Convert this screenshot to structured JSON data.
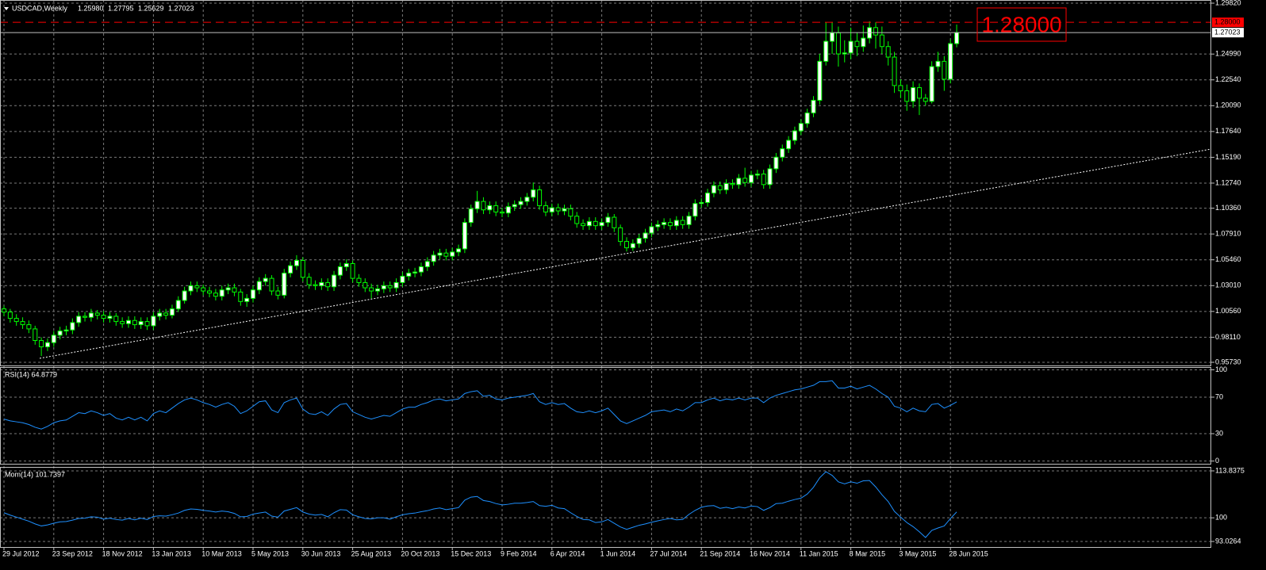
{
  "chart_data": [
    {
      "type": "candlestick",
      "title": "USDCAD,Weekly",
      "ohlc_labels": [
        "1.25980",
        "1.27795",
        "1.25629",
        "1.27023"
      ],
      "wick_color": "#00ff00",
      "up_color": "#ffffff",
      "down_color": "#000000",
      "grid": true,
      "ylim": [
        0.9543,
        1.3012
      ],
      "yticks": [
        {
          "value": 1.2982,
          "label": "1.29820"
        },
        {
          "value": 1.2499,
          "label": "1.24990"
        },
        {
          "value": 1.2254,
          "label": "1.22540"
        },
        {
          "value": 1.2009,
          "label": "1.20090"
        },
        {
          "value": 1.1764,
          "label": "1.17640"
        },
        {
          "value": 1.1519,
          "label": "1.15190"
        },
        {
          "value": 1.1274,
          "label": "1.12740"
        },
        {
          "value": 1.1036,
          "label": "1.10360"
        },
        {
          "value": 1.0791,
          "label": "1.07910"
        },
        {
          "value": 1.0546,
          "label": "1.05460"
        },
        {
          "value": 1.0301,
          "label": "1.03010"
        },
        {
          "value": 1.0056,
          "label": "1.00560"
        },
        {
          "value": 0.9811,
          "label": "0.98110"
        },
        {
          "value": 0.9573,
          "label": "0.95730"
        }
      ],
      "hline": {
        "value": 1.28,
        "label": "1.28000",
        "color": "#ff0000"
      },
      "current": {
        "value": 1.27023,
        "label": "1.27023",
        "color": "#c0c0c0"
      },
      "open": [
        1.008,
        1.005,
        0.999,
        0.996,
        0.993,
        0.989,
        0.978,
        0.972,
        0.976,
        0.983,
        0.987,
        0.988,
        0.995,
        1.001,
        1.0,
        1.004,
        1.002,
        0.999,
        1.001,
        0.996,
        0.994,
        0.997,
        0.993,
        0.996,
        0.992,
        1.001,
        1.004,
        1.002,
        1.008,
        1.016,
        1.025,
        1.03,
        1.028,
        1.025,
        1.023,
        1.02,
        1.026,
        1.028,
        1.024,
        1.015,
        1.018,
        1.026,
        1.034,
        1.037,
        1.025,
        1.021,
        1.042,
        1.049,
        1.054,
        1.038,
        1.031,
        1.03,
        1.033,
        1.029,
        1.04,
        1.048,
        1.051,
        1.037,
        1.033,
        1.028,
        1.025,
        1.027,
        1.03,
        1.028,
        1.033,
        1.039,
        1.042,
        1.043,
        1.048,
        1.053,
        1.059,
        1.061,
        1.058,
        1.062,
        1.065,
        1.09,
        1.103,
        1.11,
        1.102,
        1.106,
        1.1,
        1.099,
        1.105,
        1.107,
        1.11,
        1.114,
        1.121,
        1.106,
        1.1,
        1.104,
        1.101,
        1.103,
        1.096,
        1.089,
        1.087,
        1.091,
        1.087,
        1.09,
        1.095,
        1.085,
        1.072,
        1.066,
        1.07,
        1.075,
        1.08,
        1.086,
        1.088,
        1.09,
        1.087,
        1.092,
        1.088,
        1.096,
        1.108,
        1.109,
        1.118,
        1.125,
        1.121,
        1.127,
        1.126,
        1.132,
        1.128,
        1.135,
        1.136,
        1.126,
        1.141,
        1.152,
        1.16,
        1.168,
        1.177,
        1.184,
        1.194,
        1.206,
        1.243,
        1.262,
        1.27,
        1.25,
        1.251,
        1.262,
        1.257,
        1.265,
        1.275,
        1.268,
        1.257,
        1.247,
        1.22,
        1.215,
        1.205,
        1.218,
        1.208,
        1.205,
        1.238,
        1.243,
        1.226,
        1.2598
      ],
      "high": [
        1.011,
        1.008,
        1.003,
        1.0,
        0.997,
        0.992,
        0.981,
        0.98,
        0.987,
        0.991,
        0.992,
        0.999,
        1.005,
        1.005,
        1.008,
        1.007,
        1.006,
        1.005,
        1.004,
        1.0,
        1.001,
        1.001,
        1.0,
        1.0,
        1.005,
        1.008,
        1.008,
        1.012,
        1.02,
        1.029,
        1.034,
        1.034,
        1.031,
        1.029,
        1.027,
        1.03,
        1.032,
        1.032,
        1.027,
        1.022,
        1.03,
        1.038,
        1.041,
        1.04,
        1.029,
        1.046,
        1.053,
        1.059,
        1.057,
        1.042,
        1.035,
        1.037,
        1.037,
        1.044,
        1.052,
        1.055,
        1.054,
        1.041,
        1.037,
        1.032,
        1.031,
        1.034,
        1.034,
        1.037,
        1.043,
        1.046,
        1.047,
        1.052,
        1.057,
        1.063,
        1.065,
        1.065,
        1.066,
        1.069,
        1.094,
        1.107,
        1.12,
        1.114,
        1.11,
        1.11,
        1.104,
        1.109,
        1.111,
        1.114,
        1.118,
        1.128,
        1.125,
        1.11,
        1.108,
        1.108,
        1.107,
        1.107,
        1.1,
        1.093,
        1.095,
        1.095,
        1.094,
        1.099,
        1.098,
        1.088,
        1.076,
        1.074,
        1.079,
        1.084,
        1.09,
        1.092,
        1.094,
        1.094,
        1.096,
        1.096,
        1.1,
        1.112,
        1.113,
        1.122,
        1.129,
        1.129,
        1.131,
        1.131,
        1.136,
        1.142,
        1.139,
        1.14,
        1.14,
        1.145,
        1.156,
        1.164,
        1.172,
        1.181,
        1.188,
        1.198,
        1.21,
        1.25,
        1.28,
        1.28,
        1.276,
        1.263,
        1.275,
        1.27,
        1.277,
        1.281,
        1.28,
        1.276,
        1.262,
        1.252,
        1.226,
        1.221,
        1.224,
        1.222,
        1.212,
        1.243,
        1.252,
        1.248,
        1.264,
        1.27795
      ],
      "low": [
        1.001,
        0.995,
        0.992,
        0.989,
        0.985,
        0.974,
        0.9633,
        0.968,
        0.972,
        0.979,
        0.983,
        0.984,
        0.991,
        0.996,
        0.996,
        0.998,
        0.995,
        0.995,
        0.992,
        0.99,
        0.99,
        0.989,
        0.989,
        0.988,
        0.988,
        0.997,
        0.998,
        0.999,
        1.005,
        1.013,
        1.021,
        1.024,
        1.021,
        1.019,
        1.016,
        1.016,
        1.022,
        1.02,
        1.011,
        1.01,
        1.014,
        1.022,
        1.03,
        1.021,
        1.017,
        1.018,
        1.038,
        1.045,
        1.034,
        1.027,
        1.026,
        1.026,
        1.025,
        1.025,
        1.036,
        1.044,
        1.033,
        1.029,
        1.024,
        1.018,
        1.021,
        1.023,
        1.024,
        1.024,
        1.029,
        1.035,
        1.038,
        1.039,
        1.044,
        1.049,
        1.055,
        1.054,
        1.054,
        1.058,
        1.061,
        1.086,
        1.099,
        1.098,
        1.098,
        1.096,
        1.095,
        1.095,
        1.101,
        1.103,
        1.106,
        1.11,
        1.102,
        1.096,
        1.096,
        1.097,
        1.097,
        1.092,
        1.085,
        1.083,
        1.083,
        1.083,
        1.083,
        1.086,
        1.081,
        1.068,
        1.0625,
        1.063,
        1.066,
        1.071,
        1.076,
        1.082,
        1.084,
        1.083,
        1.083,
        1.084,
        1.084,
        1.092,
        1.104,
        1.105,
        1.114,
        1.117,
        1.117,
        1.122,
        1.122,
        1.124,
        1.124,
        1.131,
        1.122,
        1.122,
        1.137,
        1.148,
        1.156,
        1.164,
        1.173,
        1.18,
        1.19,
        1.202,
        1.239,
        1.25,
        1.238,
        1.242,
        1.245,
        1.248,
        1.252,
        1.26,
        1.255,
        1.25,
        1.239,
        1.213,
        1.208,
        1.196,
        1.199,
        1.192,
        1.201,
        1.203,
        1.233,
        1.215,
        1.222,
        1.25629
      ],
      "close": [
        1.005,
        0.999,
        0.996,
        0.993,
        0.989,
        0.978,
        0.972,
        0.976,
        0.983,
        0.987,
        0.988,
        0.995,
        1.001,
        1.0,
        1.004,
        1.002,
        0.999,
        1.001,
        0.996,
        0.994,
        0.997,
        0.993,
        0.996,
        0.992,
        1.001,
        1.004,
        1.002,
        1.008,
        1.016,
        1.025,
        1.03,
        1.028,
        1.025,
        1.023,
        1.02,
        1.026,
        1.028,
        1.024,
        1.015,
        1.018,
        1.026,
        1.034,
        1.037,
        1.025,
        1.021,
        1.042,
        1.049,
        1.054,
        1.038,
        1.031,
        1.03,
        1.033,
        1.029,
        1.04,
        1.048,
        1.051,
        1.037,
        1.033,
        1.028,
        1.025,
        1.027,
        1.03,
        1.028,
        1.033,
        1.039,
        1.042,
        1.043,
        1.048,
        1.053,
        1.059,
        1.061,
        1.058,
        1.062,
        1.065,
        1.09,
        1.103,
        1.11,
        1.102,
        1.106,
        1.1,
        1.099,
        1.105,
        1.107,
        1.11,
        1.114,
        1.121,
        1.106,
        1.1,
        1.104,
        1.101,
        1.103,
        1.096,
        1.089,
        1.087,
        1.091,
        1.087,
        1.09,
        1.095,
        1.085,
        1.072,
        1.066,
        1.07,
        1.075,
        1.08,
        1.086,
        1.088,
        1.09,
        1.087,
        1.092,
        1.088,
        1.096,
        1.108,
        1.109,
        1.118,
        1.125,
        1.121,
        1.127,
        1.126,
        1.132,
        1.128,
        1.135,
        1.136,
        1.126,
        1.141,
        1.152,
        1.16,
        1.168,
        1.177,
        1.184,
        1.194,
        1.206,
        1.243,
        1.262,
        1.27,
        1.25,
        1.251,
        1.262,
        1.257,
        1.265,
        1.275,
        1.268,
        1.257,
        1.247,
        1.22,
        1.215,
        1.205,
        1.218,
        1.208,
        1.205,
        1.238,
        1.243,
        1.226,
        1.2598,
        1.27023
      ]
    },
    {
      "type": "line",
      "title": "RSI(14) 64.8779",
      "color": "#1e90ff",
      "grid": true,
      "ylim": [
        -3,
        103
      ],
      "yticks": [
        100,
        70,
        30,
        0
      ],
      "values": [
        46,
        44,
        43,
        42,
        40,
        37,
        35,
        38,
        42,
        44,
        45,
        49,
        53,
        52,
        55,
        53,
        50,
        52,
        47,
        45,
        48,
        45,
        48,
        44,
        52,
        55,
        53,
        58,
        63,
        67,
        69,
        67,
        64,
        62,
        59,
        62,
        64,
        60,
        52,
        55,
        60,
        65,
        66,
        56,
        53,
        64,
        67,
        69,
        57,
        52,
        51,
        54,
        50,
        57,
        62,
        63,
        54,
        51,
        48,
        46,
        48,
        50,
        49,
        53,
        57,
        59,
        59,
        62,
        64,
        67,
        68,
        66,
        67,
        68,
        74,
        76,
        77,
        71,
        72,
        68,
        67,
        69,
        70,
        71,
        72,
        74,
        65,
        62,
        64,
        62,
        63,
        58,
        54,
        53,
        55,
        53,
        55,
        58,
        51,
        44,
        41,
        44,
        47,
        50,
        54,
        55,
        56,
        54,
        57,
        55,
        59,
        64,
        64,
        67,
        69,
        66,
        68,
        67,
        69,
        67,
        69,
        69,
        64,
        69,
        72,
        74,
        76,
        78,
        79,
        81,
        83,
        87,
        87,
        88,
        80,
        80,
        82,
        79,
        81,
        83,
        79,
        74,
        70,
        60,
        58,
        54,
        58,
        55,
        54,
        62,
        63,
        58,
        61,
        64.8779
      ]
    },
    {
      "type": "line",
      "title": "Mom(14) 101.7397",
      "color": "#1e90ff",
      "grid": true,
      "ylim": [
        91.39,
        115.0
      ],
      "yticks": [
        113.8375,
        100,
        93.0264
      ],
      "values": [
        101.5,
        100.8,
        100.2,
        99.6,
        99.0,
        98.2,
        97.6,
        97.9,
        98.4,
        98.8,
        98.9,
        99.3,
        99.8,
        99.9,
        100.3,
        100.2,
        99.6,
        99.9,
        99.5,
        99.3,
        99.8,
        99.4,
        99.9,
        99.5,
        100.4,
        100.6,
        100.5,
        100.9,
        101.4,
        102.2,
        102.6,
        102.5,
        102.2,
        102.0,
        101.7,
        102.0,
        101.8,
        101.3,
        100.3,
        100.4,
        101.1,
        101.4,
        101.7,
        100.5,
        100.2,
        102.0,
        102.5,
        103.0,
        101.7,
        101.1,
        100.8,
        101.0,
        100.3,
        101.5,
        102.4,
        102.3,
        100.9,
        100.3,
        99.8,
        99.7,
        100.0,
        100.0,
        99.6,
        100.3,
        100.9,
        101.2,
        101.4,
        101.8,
        102.1,
        102.6,
        102.9,
        102.4,
        102.7,
        103.0,
        105.2,
        106.1,
        106.3,
        105.1,
        104.8,
        104.2,
        103.8,
        104.0,
        104.3,
        104.3,
        104.5,
        104.8,
        103.6,
        103.4,
        103.7,
        102.9,
        102.7,
        101.5,
        100.4,
        99.5,
        99.4,
        98.6,
        98.8,
        99.5,
        98.4,
        97.3,
        96.6,
        97.2,
        97.8,
        98.2,
        98.7,
        99.1,
        99.5,
        99.8,
        99.4,
        99.5,
        101.0,
        102.2,
        103.1,
        103.5,
        103.6,
        102.8,
        103.1,
        102.7,
        103.2,
        102.9,
        103.5,
        103.3,
        102.2,
        103.0,
        104.2,
        104.3,
        104.9,
        105.4,
        105.8,
        107.0,
        109.0,
        111.8,
        113.6,
        112.5,
        110.6,
        110.0,
        110.6,
        110.2,
        110.9,
        111.0,
        109.1,
        106.8,
        104.8,
        101.9,
        100.2,
        98.6,
        97.4,
        95.9,
        94.2,
        96.3,
        97.0,
        97.6,
        99.8,
        101.7397
      ],
      "categories": [
        "29 Jul 2012",
        null,
        null,
        null,
        null,
        null,
        null,
        null,
        "23 Sep 2012",
        null,
        null,
        null,
        null,
        null,
        null,
        null,
        "18 Nov 2012",
        null,
        null,
        null,
        null,
        null,
        null,
        null,
        "13 Jan 2013",
        null,
        null,
        null,
        null,
        null,
        null,
        null,
        "10 Mar 2013",
        null,
        null,
        null,
        null,
        null,
        null,
        null,
        "5 May 2013",
        null,
        null,
        null,
        null,
        null,
        null,
        null,
        "30 Jun 2013",
        null,
        null,
        null,
        null,
        null,
        null,
        null,
        "25 Aug 2013",
        null,
        null,
        null,
        null,
        null,
        null,
        null,
        "20 Oct 2013",
        null,
        null,
        null,
        null,
        null,
        null,
        null,
        "15 Dec 2013",
        null,
        null,
        null,
        null,
        null,
        null,
        null,
        "9 Feb 2014",
        null,
        null,
        null,
        null,
        null,
        null,
        null,
        "6 Apr 2014",
        null,
        null,
        null,
        null,
        null,
        null,
        null,
        "1 Jun 2014",
        null,
        null,
        null,
        null,
        null,
        null,
        null,
        "27 Jul 2014",
        null,
        null,
        null,
        null,
        null,
        null,
        null,
        "21 Sep 2014",
        null,
        null,
        null,
        null,
        null,
        null,
        null,
        "16 Nov 2014",
        null,
        null,
        null,
        null,
        null,
        null,
        null,
        "11 Jan 2015",
        null,
        null,
        null,
        null,
        null,
        null,
        null,
        "8 Mar 2015",
        null,
        null,
        null,
        null,
        null,
        null,
        null,
        "3 May 2015",
        null,
        null,
        null,
        null,
        null,
        null,
        null,
        "28 Jun 2015",
        null
      ]
    }
  ]
}
